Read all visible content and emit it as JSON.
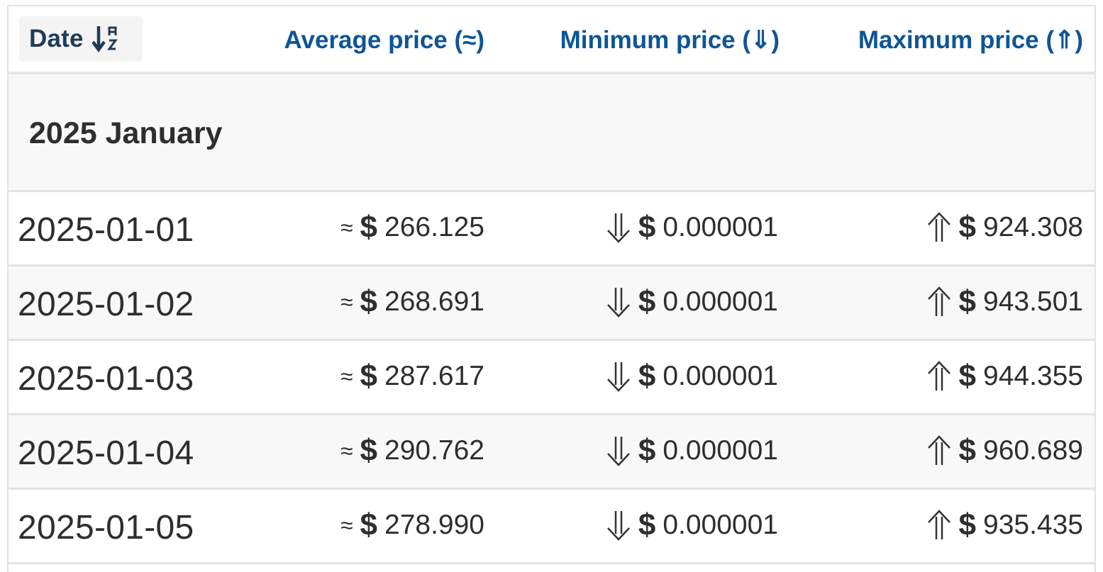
{
  "header": {
    "date_label": "Date",
    "avg_label": "Average price (≈)",
    "min_label": "Minimum price (⇓)",
    "max_label": "Maximum price (⇑)",
    "sort_icon": "sort-alpha-down-icon"
  },
  "group": {
    "title": "2025 January"
  },
  "symbols": {
    "approx": "≈",
    "currency": "$"
  },
  "rows": [
    {
      "date": "2025-01-01",
      "avg": "266.125",
      "min": "0.000001",
      "max": "924.308"
    },
    {
      "date": "2025-01-02",
      "avg": "268.691",
      "min": "0.000001",
      "max": "943.501"
    },
    {
      "date": "2025-01-03",
      "avg": "287.617",
      "min": "0.000001",
      "max": "944.355"
    },
    {
      "date": "2025-01-04",
      "avg": "290.762",
      "min": "0.000001",
      "max": "960.689"
    },
    {
      "date": "2025-01-05",
      "avg": "278.990",
      "min": "0.000001",
      "max": "935.435"
    }
  ],
  "colors": {
    "header_text": "#0d5596",
    "date_header_text": "#1f3b57",
    "body_text": "#2e2e2e",
    "row_alt_bg": "#f8f8f8",
    "border": "#e3e3e3"
  }
}
